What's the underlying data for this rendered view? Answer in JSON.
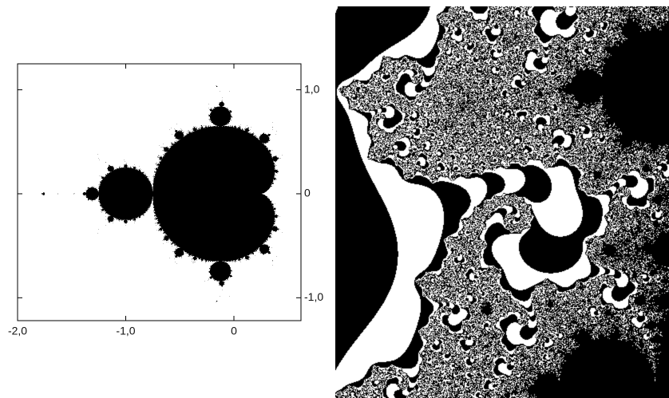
{
  "figure": {
    "left_panel": {
      "xlim": [
        -2,
        0.62
      ],
      "ylim": [
        -1.22,
        1.25
      ],
      "xticks": [
        {
          "value": -2,
          "label": "-2,0"
        },
        {
          "value": -1,
          "label": "-1,0"
        },
        0
      ],
      "yticks": [
        {
          "value": 1,
          "label": "1,0"
        },
        0,
        {
          "value": -1,
          "label": "-1,0"
        }
      ]
    }
  }
}
